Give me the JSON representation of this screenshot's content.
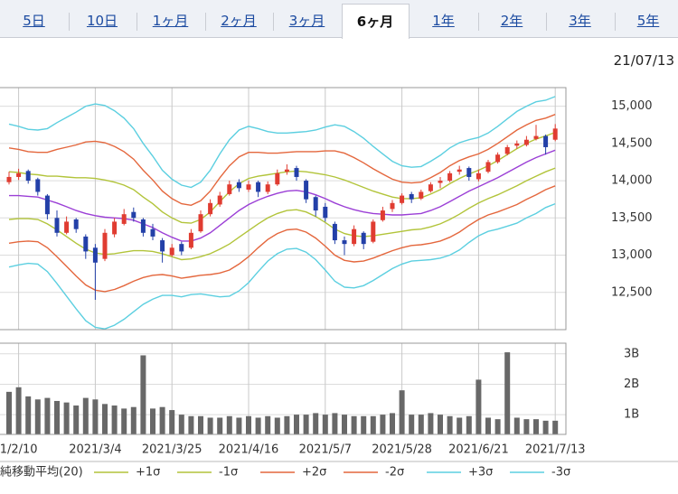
{
  "tabs": [
    "5日",
    "10日",
    "1ヶ月",
    "2ヶ月",
    "3ヶ月",
    "6ヶ月",
    "1年",
    "2年",
    "3年",
    "5年"
  ],
  "selected_tab": 5,
  "date": "21/07/13",
  "chart_data": [
    {
      "type": "candlestick",
      "categories": [
        null,
        "1/2/10",
        null,
        null,
        null,
        null,
        null,
        null,
        null,
        "2021/3/4",
        null,
        null,
        null,
        null,
        null,
        null,
        null,
        "2021/3/25",
        null,
        null,
        null,
        null,
        null,
        null,
        null,
        "2021/4/16",
        null,
        null,
        null,
        null,
        null,
        null,
        null,
        "2021/5/7",
        null,
        null,
        null,
        null,
        null,
        null,
        null,
        "2021/5/28",
        null,
        null,
        null,
        null,
        null,
        null,
        null,
        "2021/6/21",
        null,
        null,
        null,
        null,
        null,
        null,
        null,
        "2021/7/13"
      ],
      "open": [
        13980,
        14050,
        14130,
        14020,
        13800,
        13500,
        13300,
        13480,
        13250,
        13100,
        12950,
        13280,
        13420,
        13580,
        13480,
        13350,
        13200,
        13000,
        13150,
        13100,
        13320,
        13550,
        13680,
        13820,
        13980,
        13880,
        13980,
        13850,
        13950,
        14120,
        14170,
        14000,
        13780,
        13650,
        13420,
        13200,
        13150,
        13300,
        13180,
        13470,
        13620,
        13700,
        13820,
        13760,
        13860,
        13970,
        14000,
        14120,
        14170,
        14020,
        14120,
        14250,
        14360,
        14470,
        14480,
        14560,
        14600,
        14550
      ],
      "high": [
        14120,
        14160,
        14150,
        14040,
        13820,
        13600,
        13520,
        13500,
        13280,
        13150,
        13350,
        13500,
        13620,
        13640,
        13500,
        13420,
        13230,
        13150,
        13180,
        13350,
        13600,
        13750,
        13850,
        14000,
        14020,
        14000,
        14000,
        13990,
        14150,
        14220,
        14200,
        14020,
        13800,
        13700,
        13450,
        13250,
        13400,
        13320,
        13480,
        13650,
        13740,
        13830,
        13850,
        13880,
        13980,
        14050,
        14130,
        14200,
        14190,
        14150,
        14280,
        14380,
        14480,
        14540,
        14600,
        14750,
        14620,
        14760
      ],
      "low": [
        13950,
        14010,
        13960,
        13800,
        13480,
        13250,
        13280,
        13300,
        12950,
        12400,
        12920,
        13240,
        13400,
        13450,
        13250,
        13200,
        12900,
        12980,
        13000,
        13080,
        13300,
        13520,
        13650,
        13800,
        13850,
        13850,
        13780,
        13820,
        13930,
        14080,
        14000,
        13700,
        13520,
        13450,
        13150,
        13000,
        13120,
        13080,
        13160,
        13450,
        13580,
        13680,
        13700,
        13740,
        13840,
        13900,
        13980,
        14080,
        14000,
        13990,
        14100,
        14230,
        14340,
        14430,
        14460,
        14540,
        14350,
        14530
      ],
      "close": [
        14050,
        14100,
        14000,
        13850,
        13550,
        13300,
        13450,
        13350,
        13050,
        12900,
        13300,
        13450,
        13550,
        13500,
        13300,
        13250,
        13050,
        13100,
        13050,
        13300,
        13550,
        13700,
        13800,
        13950,
        13900,
        13950,
        13850,
        13950,
        14100,
        14150,
        14050,
        13750,
        13600,
        13500,
        13200,
        13150,
        13350,
        13150,
        13450,
        13600,
        13700,
        13800,
        13750,
        13850,
        13950,
        14000,
        14100,
        14150,
        14050,
        14100,
        14250,
        14350,
        14450,
        14500,
        14550,
        14600,
        14450,
        14700
      ],
      "up_color": "#e03c31",
      "down_color": "#2340a8",
      "series": [
        {
          "name": "純移動平均(20)",
          "color": "#9b3fd6",
          "values": [
            13800,
            13800,
            13790,
            13780,
            13740,
            13700,
            13650,
            13600,
            13560,
            13530,
            13510,
            13500,
            13490,
            13470,
            13420,
            13370,
            13300,
            13240,
            13190,
            13190,
            13230,
            13300,
            13400,
            13500,
            13600,
            13680,
            13740,
            13790,
            13830,
            13860,
            13870,
            13850,
            13810,
            13760,
            13700,
            13650,
            13610,
            13580,
            13560,
            13550,
            13540,
            13540,
            13550,
            13560,
            13600,
            13650,
            13720,
            13790,
            13860,
            13920,
            13980,
            14040,
            14110,
            14180,
            14250,
            14310,
            14360,
            14410
          ]
        },
        {
          "name": "+1σ",
          "color": "#b2c43a",
          "values": [
            14120,
            14110,
            14090,
            14080,
            14060,
            14060,
            14050,
            14040,
            14040,
            14030,
            14010,
            13980,
            13940,
            13880,
            13780,
            13690,
            13580,
            13500,
            13440,
            13430,
            13480,
            13580,
            13720,
            13850,
            13960,
            14030,
            14060,
            14080,
            14100,
            14120,
            14130,
            14120,
            14100,
            14080,
            14050,
            14010,
            13960,
            13910,
            13860,
            13820,
            13780,
            13760,
            13760,
            13770,
            13820,
            13880,
            13960,
            14030,
            14090,
            14140,
            14200,
            14270,
            14350,
            14430,
            14500,
            14560,
            14600,
            14650
          ]
        },
        {
          "name": "-1σ",
          "color": "#b2c43a",
          "values": [
            13480,
            13490,
            13490,
            13480,
            13420,
            13340,
            13250,
            13160,
            13080,
            13030,
            13010,
            13020,
            13040,
            13060,
            13060,
            13050,
            13020,
            12980,
            12940,
            12950,
            12980,
            13020,
            13080,
            13150,
            13240,
            13330,
            13420,
            13500,
            13560,
            13600,
            13610,
            13580,
            13520,
            13440,
            13350,
            13290,
            13260,
            13250,
            13260,
            13280,
            13300,
            13320,
            13340,
            13350,
            13380,
            13420,
            13480,
            13550,
            13630,
            13700,
            13760,
            13810,
            13870,
            13930,
            14000,
            14060,
            14120,
            14170
          ]
        },
        {
          "name": "+2σ",
          "color": "#e4673d",
          "values": [
            14440,
            14420,
            14390,
            14380,
            14380,
            14420,
            14450,
            14480,
            14520,
            14530,
            14510,
            14460,
            14390,
            14290,
            14140,
            14010,
            13860,
            13760,
            13690,
            13670,
            13730,
            13860,
            14040,
            14200,
            14320,
            14380,
            14380,
            14370,
            14370,
            14380,
            14390,
            14390,
            14390,
            14400,
            14400,
            14370,
            14310,
            14240,
            14160,
            14090,
            14020,
            13980,
            13970,
            13980,
            14040,
            14110,
            14200,
            14270,
            14320,
            14360,
            14420,
            14500,
            14590,
            14680,
            14750,
            14810,
            14840,
            14890
          ]
        },
        {
          "name": "-2σ",
          "color": "#e4673d",
          "values": [
            13160,
            13180,
            13190,
            13180,
            13100,
            12980,
            12850,
            12720,
            12600,
            12530,
            12510,
            12540,
            12590,
            12650,
            12700,
            12730,
            12740,
            12720,
            12690,
            12710,
            12730,
            12740,
            12760,
            12800,
            12880,
            12980,
            13100,
            13210,
            13290,
            13340,
            13350,
            13310,
            13230,
            13120,
            13000,
            12930,
            12910,
            12920,
            12960,
            13010,
            13060,
            13100,
            13130,
            13140,
            13160,
            13190,
            13240,
            13310,
            13400,
            13480,
            13540,
            13580,
            13630,
            13680,
            13750,
            13810,
            13880,
            13930
          ]
        },
        {
          "name": "+3σ",
          "color": "#5ccfe0",
          "values": [
            14760,
            14730,
            14690,
            14680,
            14700,
            14780,
            14850,
            14920,
            15000,
            15030,
            15010,
            14940,
            14840,
            14700,
            14500,
            14330,
            14140,
            14020,
            13940,
            13910,
            13980,
            14140,
            14360,
            14550,
            14680,
            14730,
            14700,
            14660,
            14640,
            14640,
            14650,
            14660,
            14680,
            14720,
            14750,
            14730,
            14660,
            14570,
            14460,
            14360,
            14260,
            14200,
            14180,
            14190,
            14260,
            14340,
            14440,
            14510,
            14550,
            14580,
            14640,
            14730,
            14830,
            14930,
            15000,
            15060,
            15080,
            15130
          ]
        },
        {
          "name": "-3σ",
          "color": "#5ccfe0",
          "values": [
            12840,
            12870,
            12890,
            12880,
            12780,
            12620,
            12450,
            12280,
            12120,
            12030,
            12010,
            12060,
            12140,
            12240,
            12340,
            12410,
            12460,
            12460,
            12440,
            12470,
            12480,
            12460,
            12440,
            12450,
            12520,
            12630,
            12780,
            12920,
            13020,
            13080,
            13090,
            13040,
            12940,
            12800,
            12650,
            12570,
            12560,
            12590,
            12660,
            12740,
            12820,
            12880,
            12920,
            12930,
            12940,
            12960,
            13000,
            13070,
            13170,
            13260,
            13320,
            13350,
            13390,
            13430,
            13500,
            13560,
            13640,
            13690
          ]
        }
      ],
      "ylim": [
        12000,
        15250
      ],
      "yticks": [
        {
          "value": 12500,
          "label": "12,500"
        },
        {
          "value": 13000,
          "label": "13,000"
        },
        {
          "value": 13500,
          "label": "13,500"
        },
        {
          "value": 14000,
          "label": "14,000"
        },
        {
          "value": 14500,
          "label": "14,500"
        },
        {
          "value": 15000,
          "label": "15,000"
        }
      ],
      "grid": true
    },
    {
      "type": "bar",
      "values": [
        1.75,
        1.9,
        1.6,
        1.5,
        1.55,
        1.45,
        1.4,
        1.3,
        1.55,
        1.5,
        1.35,
        1.3,
        1.2,
        1.25,
        2.95,
        1.2,
        1.25,
        1.15,
        1.0,
        0.95,
        0.95,
        0.9,
        0.9,
        0.95,
        0.9,
        0.95,
        0.9,
        0.95,
        0.9,
        0.95,
        1.0,
        1.0,
        1.05,
        1.0,
        1.05,
        1.0,
        0.95,
        0.95,
        0.95,
        1.0,
        1.05,
        1.8,
        1.0,
        1.0,
        1.05,
        1.0,
        0.95,
        0.9,
        0.95,
        2.15,
        0.9,
        0.85,
        3.05,
        0.9,
        0.85,
        0.85,
        0.8,
        0.8
      ],
      "color": "#686868",
      "ylim": [
        0.35,
        3.35
      ],
      "yticks": [
        {
          "value": 1,
          "label": "1B"
        },
        {
          "value": 2,
          "label": "2B"
        },
        {
          "value": 3,
          "label": "3B"
        }
      ]
    }
  ]
}
